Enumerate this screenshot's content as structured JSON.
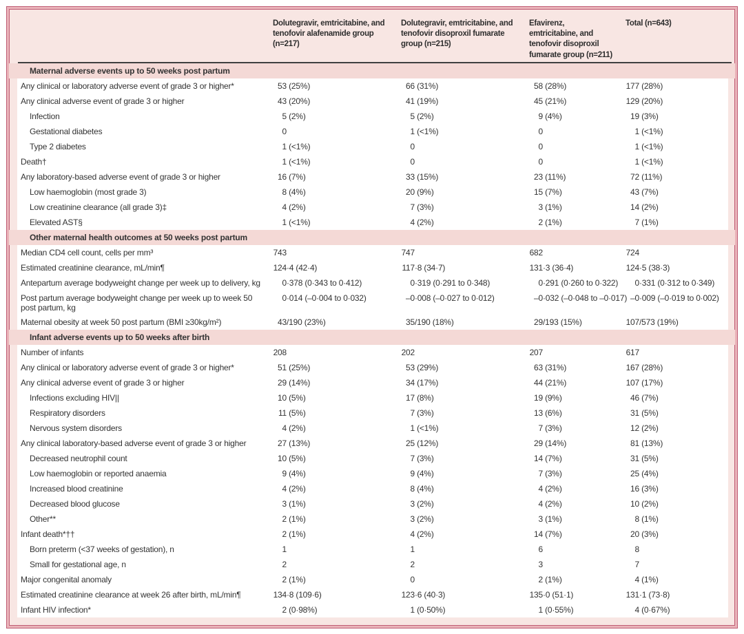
{
  "colors": {
    "frame_border": "#bf5c74",
    "frame_border_light": "#eab4ba",
    "panel_bg": "#f8e6e3",
    "section_bg": "#f4d9d6",
    "header_rule": "#3f3f3f",
    "text": "#333333"
  },
  "table": {
    "columns": [
      {
        "header": "Dolutegravir, emtricitabine, and tenofovir alafenamide group (n=217)"
      },
      {
        "header": "Dolutegravir, emtricitabine, and tenofovir disoproxil fumarate group (n=215)"
      },
      {
        "header": "Efavirenz, emtricitabine, and tenofovir disoproxil fumarate group (n=211)"
      },
      {
        "header": "Total (n=643)"
      }
    ],
    "sections": [
      {
        "title": "Maternal adverse events up to 50 weeks post partum",
        "rows": [
          {
            "label": "Any clinical or laboratory adverse event of grade 3 or higher*",
            "indent": 0,
            "values": [
              "53 (25%)",
              "66 (31%)",
              "58 (28%)",
              "177 (28%)"
            ]
          },
          {
            "label": "Any clinical adverse event of grade 3 or higher",
            "indent": 0,
            "values": [
              "43 (20%)",
              "41 (19%)",
              "45 (21%)",
              "129 (20%)"
            ]
          },
          {
            "label": "Infection",
            "indent": 1,
            "values": [
              "5 (2%)",
              "5 (2%)",
              "9 (4%)",
              "19 (3%)"
            ]
          },
          {
            "label": "Gestational diabetes",
            "indent": 1,
            "values": [
              "0",
              "1 (<1%)",
              "0",
              "1 (<1%)"
            ]
          },
          {
            "label": "Type 2 diabetes",
            "indent": 1,
            "values": [
              "1 (<1%)",
              "0",
              "0",
              "1 (<1%)"
            ]
          },
          {
            "label": "Death†",
            "indent": 0,
            "values": [
              "1 (<1%)",
              "0",
              "0",
              "1 (<1%)"
            ]
          },
          {
            "label": "Any laboratory-based adverse event of grade 3 or higher",
            "indent": 0,
            "values": [
              "16 (7%)",
              "33 (15%)",
              "23 (11%)",
              "72 (11%)"
            ]
          },
          {
            "label": "Low haemoglobin (most grade 3)",
            "indent": 1,
            "values": [
              "8 (4%)",
              "20 (9%)",
              "15 (7%)",
              "43 (7%)"
            ]
          },
          {
            "label": "Low creatinine clearance (all grade 3)‡",
            "indent": 1,
            "values": [
              "4 (2%)",
              "7 (3%)",
              "3 (1%)",
              "14 (2%)"
            ]
          },
          {
            "label": "Elevated AST§",
            "indent": 1,
            "values": [
              "1 (<1%)",
              "4 (2%)",
              "2 (1%)",
              "7 (1%)"
            ]
          }
        ]
      },
      {
        "title": "Other maternal health outcomes at 50 weeks post partum",
        "rows": [
          {
            "label": "Median CD4 cell count, cells per mm³",
            "indent": 0,
            "values": [
              "743",
              "747",
              "682",
              "724"
            ]
          },
          {
            "label": "Estimated creatinine clearance, mL/min¶",
            "indent": 0,
            "values": [
              "124·4 (42·4)",
              "117·8 (34·7)",
              "131·3 (36·4)",
              "124·5 (38·3)"
            ]
          },
          {
            "label": "Antepartum average bodyweight change per week up to delivery, kg",
            "indent": 0,
            "values": [
              "0·378 (0·343 to 0·412)",
              "0·319 (0·291 to 0·348)",
              "0·291 (0·260 to 0·322)",
              "0·331 (0·312 to 0·349)"
            ]
          },
          {
            "label": "Post partum average bodyweight change per week up to week 50 post partum, kg",
            "indent": 0,
            "values": [
              "0·014 (–0·004 to 0·032)",
              "–0·008 (–0·027 to 0·012)",
              "–0·032 (–0·048 to –0·017)",
              "–0·009 (–0·019 to 0·002)"
            ]
          },
          {
            "label": "Maternal obesity at week 50 post partum (BMI ≥30kg/m²)",
            "indent": 0,
            "values": [
              "43/190 (23%)",
              "35/190 (18%)",
              "29/193 (15%)",
              "107/573 (19%)"
            ]
          }
        ]
      },
      {
        "title": "Infant adverse events up to 50 weeks after birth",
        "rows": [
          {
            "label": "Number of infants",
            "indent": 0,
            "values": [
              "208",
              "202",
              "207",
              "617"
            ]
          },
          {
            "label": "Any clinical or laboratory adverse event of grade 3 or higher*",
            "indent": 0,
            "values": [
              "51 (25%)",
              "53 (29%)",
              "63 (31%)",
              "167 (28%)"
            ]
          },
          {
            "label": "Any clinical adverse event of grade 3 or higher",
            "indent": 0,
            "values": [
              "29 (14%)",
              "34 (17%)",
              "44 (21%)",
              "107 (17%)"
            ]
          },
          {
            "label": "Infections excluding HIV||",
            "indent": 1,
            "values": [
              "10 (5%)",
              "17 (8%)",
              "19 (9%)",
              "46 (7%)"
            ]
          },
          {
            "label": "Respiratory disorders",
            "indent": 1,
            "values": [
              "11 (5%)",
              "7 (3%)",
              "13 (6%)",
              "31 (5%)"
            ]
          },
          {
            "label": "Nervous system disorders",
            "indent": 1,
            "values": [
              "4 (2%)",
              "1 (<1%)",
              "7 (3%)",
              "12 (2%)"
            ]
          },
          {
            "label": "Any clinical laboratory-based adverse event of grade 3 or higher",
            "indent": 0,
            "values": [
              "27 (13%)",
              "25 (12%)",
              "29 (14%)",
              "81 (13%)"
            ]
          },
          {
            "label": "Decreased neutrophil count",
            "indent": 1,
            "values": [
              "10 (5%)",
              "7 (3%)",
              "14 (7%)",
              "31 (5%)"
            ]
          },
          {
            "label": "Low haemoglobin or reported anaemia",
            "indent": 1,
            "values": [
              "9 (4%)",
              "9 (4%)",
              "7 (3%)",
              "25 (4%)"
            ]
          },
          {
            "label": "Increased blood creatinine",
            "indent": 1,
            "values": [
              "4 (2%)",
              "8 (4%)",
              "4 (2%)",
              "16 (3%)"
            ]
          },
          {
            "label": "Decreased blood glucose",
            "indent": 1,
            "values": [
              "3 (1%)",
              "3 (2%)",
              "4 (2%)",
              "10 (2%)"
            ]
          },
          {
            "label": "Other**",
            "indent": 1,
            "values": [
              "2 (1%)",
              "3 (2%)",
              "3 (1%)",
              "8 (1%)"
            ]
          },
          {
            "label": "Infant death*††",
            "indent": 0,
            "values": [
              "2 (1%)",
              "4 (2%)",
              "14 (7%)",
              "20 (3%)"
            ]
          },
          {
            "label": "Born preterm (<37 weeks of gestation), n",
            "indent": 1,
            "values": [
              "1",
              "1",
              "6",
              "8"
            ]
          },
          {
            "label": "Small for gestational age, n",
            "indent": 1,
            "values": [
              "2",
              "2",
              "3",
              "7"
            ]
          },
          {
            "label": "Major congenital anomaly",
            "indent": 0,
            "values": [
              "2 (1%)",
              "0",
              "2 (1%)",
              "4 (1%)"
            ]
          },
          {
            "label": "Estimated creatinine clearance at week 26 after birth, mL/min¶",
            "indent": 0,
            "values": [
              "134·8 (109·6)",
              "123·6 (40·3)",
              "135·0 (51·1)",
              "131·1 (73·8)"
            ]
          },
          {
            "label": "Infant HIV infection*",
            "indent": 0,
            "values": [
              "2 (0·98%)",
              "1 (0·50%)",
              "1 (0·55%)",
              "4 (0·67%)"
            ]
          }
        ]
      }
    ]
  }
}
